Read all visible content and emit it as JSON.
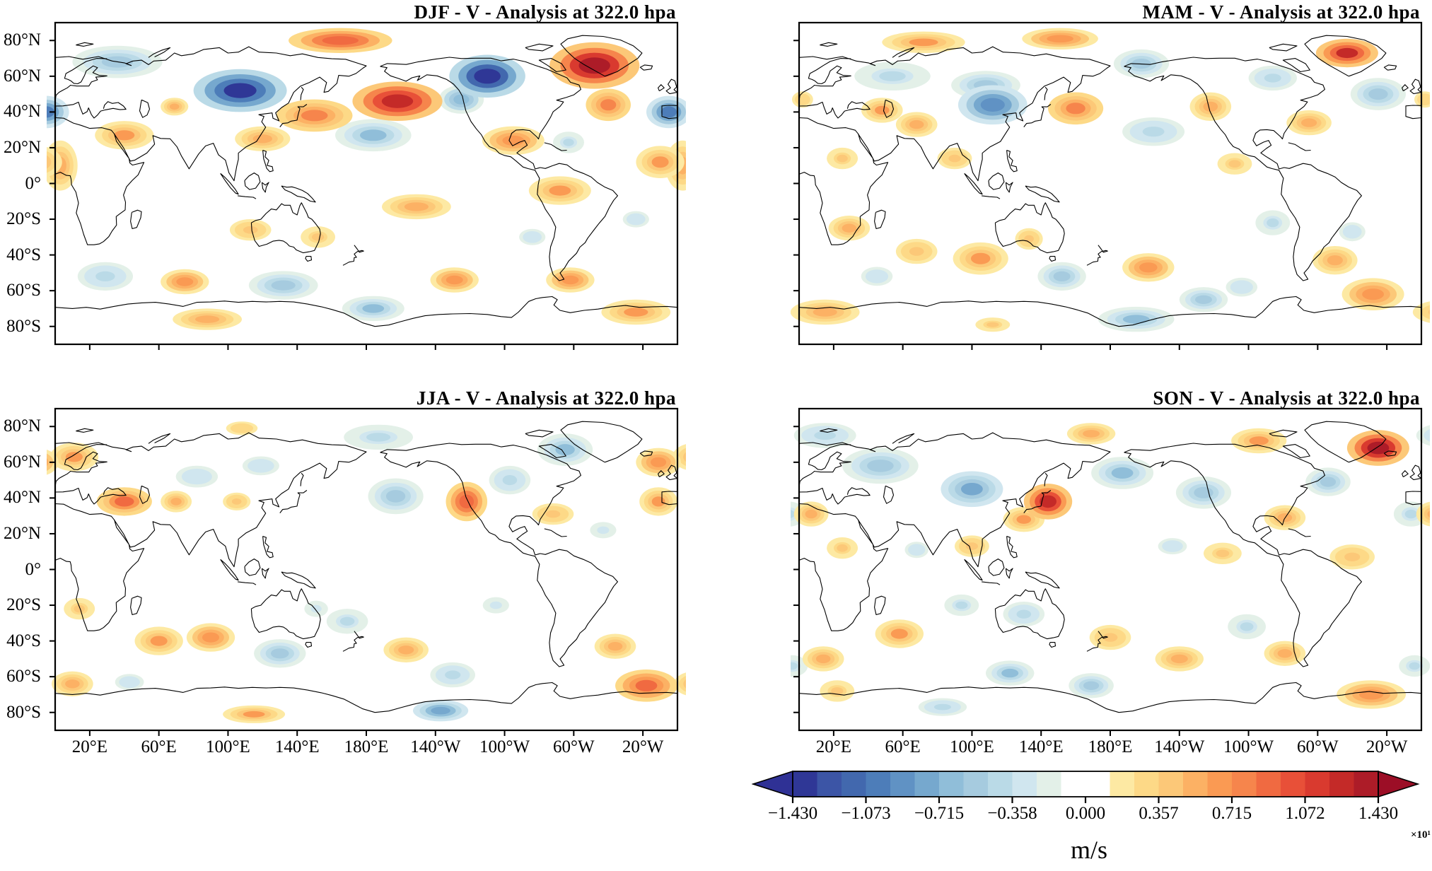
{
  "figure": {
    "kind": "seasonal filled-contour world maps",
    "variable": "V",
    "analysis_level": "322.0 hpa"
  },
  "axes": {
    "x_tick_labels": [
      "20°E",
      "60°E",
      "100°E",
      "140°E",
      "180°E",
      "140°W",
      "100°W",
      "60°W",
      "20°W"
    ],
    "y_tick_labels": [
      "80°N",
      "60°N",
      "40°N",
      "20°N",
      "0°",
      "20°S",
      "40°S",
      "60°S",
      "80°S"
    ]
  },
  "colorbar": {
    "tick_labels": [
      "−1.430",
      "−1.073",
      "−0.715",
      "−0.358",
      "0.000",
      "0.357",
      "0.715",
      "1.072",
      "1.430"
    ],
    "exponent": "×10¹",
    "units": "m/s",
    "arrow_left": "#2f3195",
    "arrow_right": "#9c0e26",
    "palette": [
      "#2f3796",
      "#3c55a6",
      "#4268ae",
      "#4d7db9",
      "#6092c4",
      "#76a8ce",
      "#90bed9",
      "#a6cbdf",
      "#badae7",
      "#d0e6ef",
      "#e3f0e8",
      "#ffffff",
      "#ffffff",
      "#fde9a3",
      "#fdd987",
      "#fcc878",
      "#fcb164",
      "#fa9a53",
      "#f6854c",
      "#f06a41",
      "#e85038",
      "#d93a2f",
      "#c42a28",
      "#ad1c28"
    ]
  },
  "chart_data": {
    "type": "heatmap",
    "subtype": "filled-contour seasonal maps, equirectangular 0–360°E, 90°N–90°S",
    "value_units": "m/s",
    "value_scale": "×10¹",
    "value_range": [
      -1.43,
      1.43
    ],
    "contour_interval": 0.119,
    "legend_position": "bottom-right horizontal colorbar with arrow ends",
    "anomaly_center_format": [
      "lon_deg_east",
      "lat_deg",
      "half_width_deg",
      "half_height_deg",
      "value"
    ],
    "panels": [
      {
        "season": "DJF",
        "title": "DJF - V - Analysis at 322.0 hpa",
        "show_y_labels": true,
        "show_x_labels": false,
        "anomaly_centers": [
          [
            36,
            68,
            26,
            9,
            -0.55
          ],
          [
            355,
            40,
            13,
            9,
            -1.05
          ],
          [
            107,
            52,
            27,
            12,
            -1.35
          ],
          [
            69,
            43,
            8,
            5,
            0.5
          ],
          [
            40,
            27,
            17,
            8,
            0.6
          ],
          [
            3,
            10,
            10,
            14,
            0.55
          ],
          [
            120,
            25,
            16,
            7,
            0.55
          ],
          [
            150,
            38,
            22,
            9,
            0.75
          ],
          [
            198,
            46,
            26,
            11,
            1.3
          ],
          [
            165,
            80,
            30,
            7,
            0.95
          ],
          [
            250,
            60,
            22,
            12,
            -1.4
          ],
          [
            235,
            47,
            13,
            8,
            -0.7
          ],
          [
            184,
            27,
            22,
            9,
            -0.6
          ],
          [
            265,
            24,
            18,
            8,
            0.7
          ],
          [
            297,
            23,
            9,
            6,
            -0.4
          ],
          [
            292,
            -4,
            18,
            8,
            0.6
          ],
          [
            350,
            12,
            14,
            9,
            0.6
          ],
          [
            312,
            66,
            26,
            13,
            1.43
          ],
          [
            320,
            44,
            13,
            9,
            0.75
          ],
          [
            209,
            -13,
            20,
            7,
            0.5
          ],
          [
            113,
            -26,
            12,
            6,
            0.45
          ],
          [
            152,
            -30,
            10,
            6,
            0.4
          ],
          [
            29,
            -52,
            16,
            8,
            -0.45
          ],
          [
            75,
            -55,
            14,
            7,
            0.65
          ],
          [
            132,
            -57,
            20,
            8,
            -0.5
          ],
          [
            231,
            -54,
            14,
            7,
            0.7
          ],
          [
            276,
            -30,
            10,
            6,
            -0.35
          ],
          [
            298,
            -54,
            14,
            7,
            0.7
          ],
          [
            336,
            -20,
            10,
            6,
            -0.35
          ],
          [
            184,
            -70,
            18,
            7,
            -0.6
          ],
          [
            88,
            -76,
            20,
            6,
            0.5
          ],
          [
            336,
            -72,
            20,
            7,
            0.6
          ]
        ]
      },
      {
        "season": "MAM",
        "title": "MAM - V - Analysis at 322.0 hpa",
        "show_y_labels": false,
        "show_x_labels": false,
        "anomaly_centers": [
          [
            72,
            79,
            24,
            6,
            0.6
          ],
          [
            151,
            81,
            22,
            6,
            0.7
          ],
          [
            317,
            73,
            18,
            8,
            1.2
          ],
          [
            54,
            60,
            22,
            8,
            -0.4
          ],
          [
            108,
            55,
            20,
            8,
            -0.5
          ],
          [
            112,
            44,
            20,
            11,
            -0.95
          ],
          [
            48,
            41,
            12,
            7,
            0.6
          ],
          [
            68,
            33,
            12,
            7,
            0.5
          ],
          [
            90,
            14,
            10,
            6,
            0.45
          ],
          [
            25,
            14,
            9,
            6,
            0.4
          ],
          [
            160,
            42,
            16,
            9,
            0.75
          ],
          [
            198,
            67,
            16,
            8,
            -0.5
          ],
          [
            205,
            29,
            18,
            8,
            -0.45
          ],
          [
            238,
            43,
            12,
            8,
            0.5
          ],
          [
            274,
            59,
            14,
            7,
            -0.45
          ],
          [
            295,
            34,
            13,
            7,
            0.5
          ],
          [
            335,
            50,
            16,
            9,
            -0.55
          ],
          [
            2,
            47,
            8,
            6,
            0.35
          ],
          [
            252,
            11,
            10,
            6,
            0.4
          ],
          [
            29,
            -25,
            12,
            7,
            0.5
          ],
          [
            68,
            -38,
            12,
            7,
            0.45
          ],
          [
            105,
            -42,
            16,
            9,
            0.6
          ],
          [
            133,
            -31,
            8,
            6,
            0.45
          ],
          [
            45,
            -52,
            12,
            7,
            -0.35
          ],
          [
            152,
            -52,
            14,
            8,
            -0.55
          ],
          [
            202,
            -47,
            15,
            8,
            0.65
          ],
          [
            234,
            -65,
            14,
            7,
            -0.5
          ],
          [
            274,
            -22,
            10,
            7,
            -0.4
          ],
          [
            310,
            -43,
            13,
            8,
            0.55
          ],
          [
            320,
            -27,
            10,
            7,
            -0.35
          ],
          [
            332,
            -62,
            18,
            9,
            0.65
          ],
          [
            15,
            -72,
            20,
            7,
            0.55
          ],
          [
            112,
            -79,
            10,
            4,
            0.4
          ],
          [
            195,
            -76,
            22,
            7,
            -0.6
          ],
          [
            256,
            -58,
            12,
            7,
            -0.35
          ]
        ]
      },
      {
        "season": "JJA",
        "title": "JJA - V - Analysis at 322.0 hpa",
        "show_y_labels": true,
        "show_x_labels": true,
        "anomaly_centers": [
          [
            11,
            63,
            14,
            8,
            0.6
          ],
          [
            349,
            60,
            13,
            8,
            0.7
          ],
          [
            349,
            38,
            11,
            8,
            0.6
          ],
          [
            40,
            38,
            16,
            8,
            0.85
          ],
          [
            70,
            38,
            9,
            6,
            0.55
          ],
          [
            105,
            38,
            8,
            5,
            0.45
          ],
          [
            82,
            52,
            16,
            8,
            -0.35
          ],
          [
            119,
            58,
            14,
            7,
            -0.35
          ],
          [
            187,
            74,
            20,
            7,
            -0.4
          ],
          [
            108,
            79,
            12,
            5,
            0.35
          ],
          [
            197,
            41,
            16,
            10,
            -0.55
          ],
          [
            238,
            38,
            12,
            11,
            0.95
          ],
          [
            263,
            50,
            12,
            8,
            -0.45
          ],
          [
            295,
            67,
            16,
            9,
            -0.6
          ],
          [
            288,
            31,
            12,
            6,
            0.45
          ],
          [
            317,
            22,
            10,
            6,
            -0.3
          ],
          [
            60,
            -40,
            14,
            8,
            0.6
          ],
          [
            90,
            -38,
            14,
            8,
            0.7
          ],
          [
            14,
            -22,
            9,
            6,
            0.4
          ],
          [
            130,
            -47,
            15,
            8,
            -0.5
          ],
          [
            151,
            -22,
            9,
            6,
            -0.3
          ],
          [
            169,
            -29,
            12,
            7,
            -0.4
          ],
          [
            203,
            -45,
            13,
            7,
            0.5
          ],
          [
            230,
            -59,
            13,
            7,
            -0.45
          ],
          [
            324,
            -43,
            12,
            7,
            0.5
          ],
          [
            342,
            -65,
            18,
            9,
            0.9
          ],
          [
            223,
            -79,
            16,
            6,
            -0.8
          ],
          [
            115,
            -81,
            18,
            5,
            0.6
          ],
          [
            10,
            -64,
            12,
            7,
            0.5
          ],
          [
            43,
            -63,
            11,
            6,
            -0.35
          ],
          [
            255,
            -20,
            10,
            6,
            -0.3
          ]
        ]
      },
      {
        "season": "SON",
        "title": "SON - V - Analysis at 322.0 hpa",
        "show_y_labels": false,
        "show_x_labels": true,
        "anomaly_centers": [
          [
            47,
            58,
            22,
            10,
            -0.55
          ],
          [
            100,
            45,
            18,
            10,
            -0.75
          ],
          [
            15,
            75,
            18,
            7,
            -0.45
          ],
          [
            7,
            31,
            10,
            7,
            0.5
          ],
          [
            25,
            12,
            9,
            6,
            0.4
          ],
          [
            144,
            38,
            14,
            10,
            1.25
          ],
          [
            130,
            28,
            12,
            7,
            0.6
          ],
          [
            187,
            54,
            18,
            9,
            -0.6
          ],
          [
            169,
            76,
            14,
            6,
            0.5
          ],
          [
            234,
            43,
            16,
            9,
            -0.55
          ],
          [
            266,
            72,
            16,
            7,
            0.6
          ],
          [
            335,
            68,
            18,
            10,
            1.43
          ],
          [
            306,
            49,
            13,
            8,
            -0.5
          ],
          [
            354,
            31,
            10,
            7,
            -0.4
          ],
          [
            281,
            29,
            12,
            7,
            0.5
          ],
          [
            320,
            7,
            13,
            7,
            0.45
          ],
          [
            245,
            9,
            11,
            6,
            0.4
          ],
          [
            216,
            13,
            11,
            6,
            -0.35
          ],
          [
            100,
            13,
            10,
            6,
            0.45
          ],
          [
            68,
            11,
            9,
            6,
            -0.35
          ],
          [
            94,
            -20,
            10,
            6,
            -0.4
          ],
          [
            130,
            -25,
            12,
            7,
            -0.45
          ],
          [
            58,
            -36,
            14,
            8,
            0.6
          ],
          [
            14,
            -50,
            12,
            7,
            0.5
          ],
          [
            122,
            -58,
            14,
            7,
            -0.6
          ],
          [
            169,
            -65,
            13,
            7,
            -0.5
          ],
          [
            180,
            -38,
            12,
            7,
            0.45
          ],
          [
            220,
            -50,
            14,
            7,
            0.5
          ],
          [
            259,
            -32,
            11,
            7,
            -0.4
          ],
          [
            281,
            -47,
            12,
            7,
            0.5
          ],
          [
            331,
            -70,
            20,
            8,
            0.7
          ],
          [
            83,
            -77,
            14,
            5,
            -0.45
          ],
          [
            356,
            -54,
            9,
            6,
            -0.4
          ],
          [
            22,
            -68,
            10,
            6,
            0.4
          ]
        ]
      }
    ]
  }
}
